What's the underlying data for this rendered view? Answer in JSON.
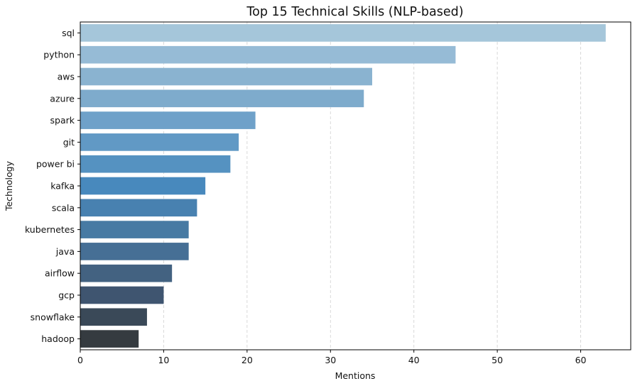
{
  "chart_data": {
    "type": "bar",
    "orientation": "horizontal",
    "title": "Top 15 Technical Skills (NLP-based)",
    "xlabel": "Mentions",
    "ylabel": "Technology",
    "categories": [
      "sql",
      "python",
      "aws",
      "azure",
      "spark",
      "git",
      "power bi",
      "kafka",
      "scala",
      "kubernetes",
      "java",
      "airflow",
      "gcp",
      "snowflake",
      "hadoop"
    ],
    "values": [
      63,
      45,
      35,
      34,
      21,
      19,
      18,
      15,
      14,
      13,
      13,
      11,
      10,
      8,
      7
    ],
    "colors": [
      "#a5c6da",
      "#96bbd6",
      "#8ab3d0",
      "#7eabcc",
      "#6fa1c9",
      "#6199c5",
      "#5592c1",
      "#4889bd",
      "#4881b0",
      "#477aa3",
      "#466f95",
      "#436281",
      "#3f5570",
      "#3a4958",
      "#353b40"
    ],
    "xlim": [
      0,
      66
    ],
    "xticks": [
      0,
      10,
      20,
      30,
      40,
      50,
      60
    ],
    "grid": "x-dashed"
  }
}
